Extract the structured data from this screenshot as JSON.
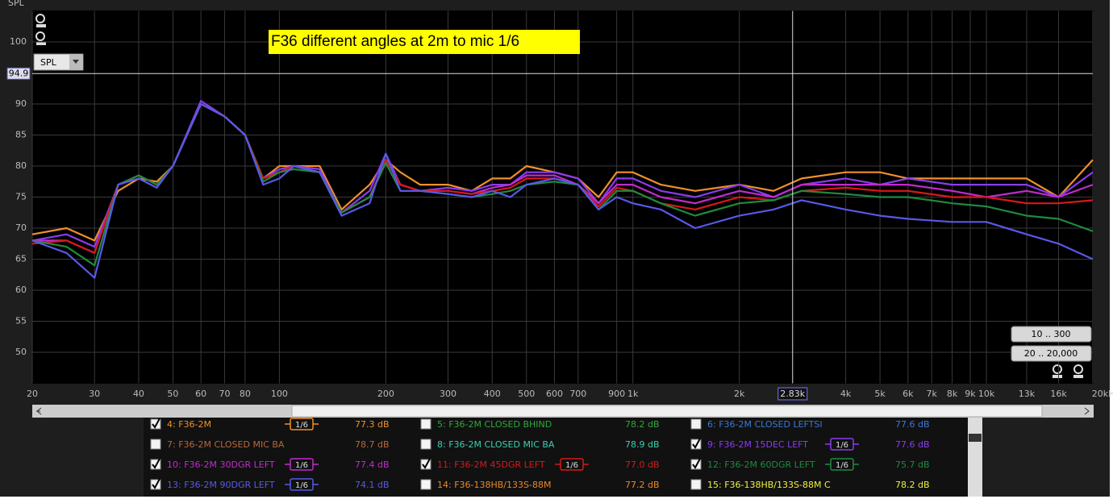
{
  "chart_data": {
    "type": "line",
    "title": "F36 different angles at 2m to mic 1/6",
    "y_label": "SPL",
    "x": [
      20,
      25,
      30,
      35,
      40,
      45,
      50,
      60,
      70,
      80,
      90,
      100,
      110,
      130,
      150,
      180,
      200,
      220,
      250,
      300,
      350,
      400,
      450,
      500,
      600,
      700,
      800,
      900,
      1000,
      1200,
      1500,
      2000,
      2500,
      3000,
      4000,
      5000,
      6000,
      8000,
      10000,
      13000,
      16000,
      20000
    ],
    "series": [
      {
        "name": "4: F36-2M",
        "color": "#f0902a",
        "values": [
          69,
          70,
          68,
          76,
          78,
          77.5,
          80,
          90,
          88,
          85,
          78,
          80,
          80,
          80,
          73,
          77,
          81,
          79,
          77,
          77,
          76,
          78,
          78,
          80,
          79,
          78,
          75,
          79,
          79,
          77,
          76,
          77,
          76,
          78,
          79,
          79,
          78,
          78,
          78,
          78,
          75,
          81
        ]
      },
      {
        "name": "9: F36-2M 15DEC LEFT",
        "color": "#8a3cf0",
        "values": [
          68,
          69,
          67,
          77,
          78.5,
          77,
          80,
          90.5,
          88,
          85,
          78,
          79.5,
          80,
          79.5,
          72.5,
          76,
          82,
          77,
          76,
          76.5,
          76,
          77,
          77,
          79,
          79,
          78,
          74,
          78,
          78,
          76,
          75,
          77,
          75,
          77,
          78,
          77,
          78,
          77,
          77,
          77,
          75,
          79
        ]
      },
      {
        "name": "10: F36-2M 30DGR LEFT",
        "color": "#c22ad0",
        "values": [
          68,
          68,
          66,
          77,
          78.5,
          77,
          80,
          90,
          88,
          85,
          78,
          79,
          80,
          79,
          72.5,
          75,
          81,
          77,
          76,
          76,
          75.5,
          76.5,
          77,
          78.5,
          78.5,
          77,
          74,
          77,
          77,
          75,
          74,
          76,
          75,
          77,
          77,
          77,
          77,
          76,
          75,
          76,
          75,
          77
        ]
      },
      {
        "name": "11: F36-2M 45DGR LEFT",
        "color": "#d81818",
        "values": [
          67.5,
          68,
          66,
          77,
          78.5,
          77,
          80,
          90,
          88,
          85,
          78,
          79,
          80,
          79,
          72.5,
          75,
          81,
          77,
          76,
          76,
          75.5,
          76,
          76.5,
          78,
          78,
          77,
          73.5,
          76.5,
          76,
          74,
          73,
          75,
          74.5,
          76,
          76.5,
          76,
          76,
          75,
          75,
          74,
          74,
          74.5
        ]
      },
      {
        "name": "12: F36-2M 60DGR LEFT",
        "color": "#1f8a40",
        "values": [
          68,
          67,
          64,
          77,
          78.5,
          77,
          80,
          90,
          88,
          85,
          77.5,
          79,
          79.5,
          79,
          72.5,
          75,
          80.5,
          76,
          76,
          75.5,
          75,
          75.5,
          76,
          77,
          77.5,
          77,
          73,
          76,
          76,
          74,
          72,
          74,
          74.5,
          76,
          75.5,
          75,
          75,
          74,
          73.5,
          72,
          71.5,
          69.5
        ]
      },
      {
        "name": "13: F36-2M 90DGR LEFT",
        "color": "#5858e8",
        "values": [
          68,
          66,
          62,
          77,
          78,
          76.5,
          80,
          90,
          88,
          85,
          77,
          78,
          80,
          79,
          72,
          74,
          82,
          76,
          76,
          75.5,
          75,
          76,
          75,
          77,
          78,
          77,
          73,
          75,
          74,
          73,
          70,
          72,
          73,
          74.5,
          73,
          72,
          71.5,
          71,
          71,
          69,
          67.5,
          65
        ]
      }
    ],
    "xlim": [
      20,
      20000
    ],
    "log_x": true,
    "xticks": [
      20,
      30,
      40,
      50,
      60,
      70,
      80,
      100,
      200,
      300,
      400,
      500,
      600,
      700,
      900,
      {
        "value": 1000,
        "label": "1k"
      },
      {
        "value": 2000,
        "label": "2k"
      },
      {
        "value": 4000,
        "label": "4k"
      },
      {
        "value": 5000,
        "label": "5k"
      },
      {
        "value": 6000,
        "label": "6k"
      },
      {
        "value": 7000,
        "label": "7k"
      },
      {
        "value": 8000,
        "label": "8k"
      },
      {
        "value": 9000,
        "label": "9k"
      },
      {
        "value": 10000,
        "label": "10k"
      },
      {
        "value": 13000,
        "label": "13k"
      },
      {
        "value": 16000,
        "label": "16k"
      },
      {
        "value": 20000,
        "label": "20kHz"
      }
    ],
    "ylim": [
      45,
      105
    ],
    "yticks": [
      50,
      55,
      60,
      65,
      70,
      75,
      80,
      85,
      90,
      100
    ],
    "grid": true,
    "cursor_y": 94.9,
    "cursor_x": {
      "value": 2830,
      "label": "2.83k"
    }
  },
  "controls": {
    "dropdown": "SPL",
    "range_buttons": [
      "10 .. 300",
      "20 .. 20,000"
    ]
  },
  "measurements": [
    {
      "label": "4: F36-2M",
      "color": "#f0902a",
      "checked": true,
      "smoothing": "1/6",
      "value": "77.3 dB"
    },
    {
      "label": "5: F36-2M CLOSED BHIND",
      "color": "#2fa83a",
      "checked": false,
      "value": "78.2 dB"
    },
    {
      "label": "6: F36-2M CLOSED LEFTSI",
      "color": "#3a78d8",
      "checked": false,
      "value": "77.6 dB"
    },
    {
      "label": "7: F36-2M CLOSED MIC BA",
      "color": "#b8683a",
      "checked": false,
      "value": "78.7 dB"
    },
    {
      "label": "8: F36-2M CLOSED MIC BA",
      "color": "#38d0b0",
      "checked": false,
      "value": "78.9 dB"
    },
    {
      "label": "9: F36-2M 15DEC LEFT",
      "color": "#8a3cf0",
      "checked": true,
      "smoothing": "1/6",
      "value": "77.6 dB"
    },
    {
      "label": "10: F36-2M 30DGR LEFT",
      "color": "#c22ad0",
      "checked": true,
      "smoothing": "1/6",
      "value": "77.4 dB"
    },
    {
      "label": "11: F36-2M 45DGR LEFT",
      "color": "#d81818",
      "checked": true,
      "smoothing": "1/6",
      "value": "77.0 dB"
    },
    {
      "label": "12: F36-2M 60DGR LEFT",
      "color": "#1f8a40",
      "checked": true,
      "smoothing": "1/6",
      "value": "75.7 dB"
    },
    {
      "label": "13: F36-2M 90DGR LEFT",
      "color": "#5858e8",
      "checked": true,
      "smoothing": "1/6",
      "value": "74.1 dB"
    },
    {
      "label": "14: F36-138HB/133S-88M",
      "color": "#e8882a",
      "checked": false,
      "value": "77.2 dB"
    },
    {
      "label": "15: F36-138HB/133S-88M C",
      "color": "#f0f040",
      "checked": false,
      "value": "78.2 dB"
    }
  ]
}
